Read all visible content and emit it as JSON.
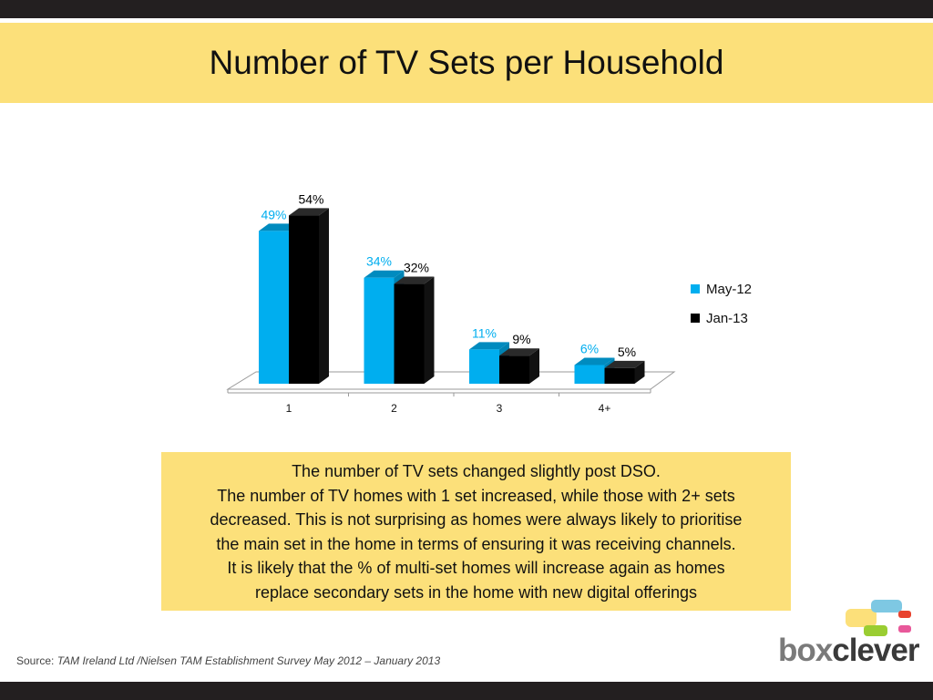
{
  "slide": {
    "title": "Number of TV Sets per Household"
  },
  "chart_data": {
    "type": "bar",
    "categories": [
      "1",
      "2",
      "3",
      "4+"
    ],
    "series": [
      {
        "name": "May-12",
        "values": [
          49,
          34,
          11,
          6
        ],
        "labels": [
          "49%",
          "34%",
          "11%",
          "6%"
        ],
        "color": "#00aeef",
        "label_color": "#00aeef"
      },
      {
        "name": "Jan-13",
        "values": [
          54,
          32,
          9,
          5
        ],
        "labels": [
          "54%",
          "32%",
          "9%",
          "5%"
        ],
        "color": "#000000",
        "label_color": "#000000"
      }
    ],
    "unit": "%",
    "ylim": [
      0,
      60
    ],
    "grid": false,
    "legend": "right",
    "style": "3d-clustered-bar"
  },
  "commentary": {
    "lines": [
      "The number of TV sets changed slightly post DSO.",
      "The number of TV homes with 1 set increased, while those with 2+ sets",
      "decreased. This is not surprising as homes were always likely to prioritise",
      "the main set in the home in terms of ensuring it was receiving channels.",
      "It is likely that the % of multi-set homes will increase again as homes",
      "replace secondary sets in the home with new digital offerings"
    ]
  },
  "source": {
    "label": "Source:",
    "text": "TAM Ireland Ltd /Nielsen TAM Establishment Survey May 2012 – January 2013"
  },
  "logo": {
    "word_part1": "box",
    "word_part2": "clever",
    "colors": [
      "#fce07a",
      "#7ec8e3",
      "#e8432e",
      "#9acd32",
      "#e8589a"
    ]
  }
}
